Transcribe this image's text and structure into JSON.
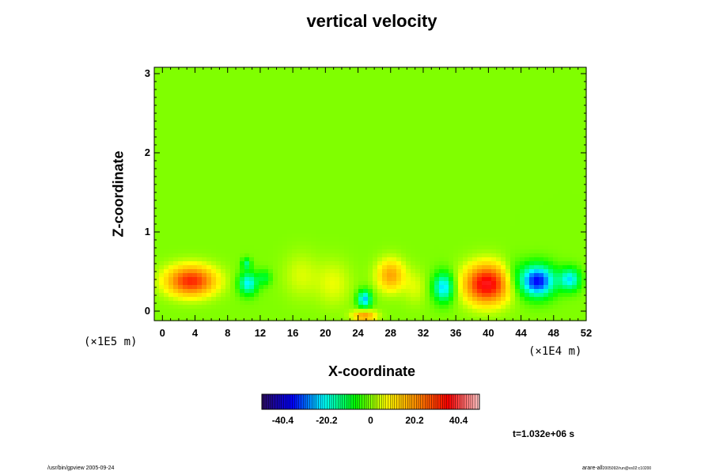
{
  "chart_data": {
    "type": "heatmap",
    "title": "vertical velocity",
    "xlabel": "X-coordinate",
    "ylabel": "Z-coordinate",
    "x_scale_label": "(×1E4 m)",
    "y_scale_label": "(×1E5 m)",
    "xlim": [
      -1,
      52
    ],
    "ylim": [
      -0.12,
      3.08
    ],
    "x_ticks": [
      "0",
      "4",
      "8",
      "12",
      "16",
      "20",
      "24",
      "28",
      "32",
      "36",
      "40",
      "44",
      "48",
      "52"
    ],
    "y_ticks": [
      "0",
      "1",
      "2",
      "3"
    ],
    "colorbar": {
      "min": -50,
      "max": 50,
      "tick_values": [
        -40.4,
        -20.2,
        0,
        20.2,
        40.4
      ],
      "tick_labels": [
        "-40.4",
        "-20.2",
        "0",
        "20.2",
        "40.4"
      ],
      "colors": [
        "#2a0a5e",
        "#0000ff",
        "#00ffff",
        "#00ff00",
        "#ffff00",
        "#ff8800",
        "#ff0000",
        "#ffc8c8"
      ]
    },
    "background_value": 0,
    "features": [
      {
        "x": 3.5,
        "z": 0.38,
        "sx": 2.1,
        "sz": 0.13,
        "value": 32
      },
      {
        "x": 10.5,
        "z": 0.35,
        "sx": 0.8,
        "sz": 0.1,
        "value": -22
      },
      {
        "x": 10.3,
        "z": 0.6,
        "sx": 0.4,
        "sz": 0.05,
        "value": -14
      },
      {
        "x": 12.5,
        "z": 0.42,
        "sx": 0.6,
        "sz": 0.07,
        "value": -10
      },
      {
        "x": 24.8,
        "z": 0.15,
        "sx": 0.6,
        "sz": 0.08,
        "value": -25
      },
      {
        "x": 24.8,
        "z": -0.06,
        "sx": 1.0,
        "sz": 0.05,
        "value": 20
      },
      {
        "x": 28.0,
        "z": 0.45,
        "sx": 1.2,
        "sz": 0.14,
        "value": 18
      },
      {
        "x": 34.5,
        "z": 0.3,
        "sx": 0.9,
        "sz": 0.13,
        "value": -24
      },
      {
        "x": 39.8,
        "z": 0.34,
        "sx": 1.9,
        "sz": 0.17,
        "value": 38
      },
      {
        "x": 46.0,
        "z": 0.38,
        "sx": 1.5,
        "sz": 0.14,
        "value": -36
      },
      {
        "x": 50.0,
        "z": 0.4,
        "sx": 0.9,
        "sz": 0.1,
        "value": -22
      },
      {
        "x": 17.0,
        "z": 0.45,
        "sx": 1.5,
        "sz": 0.2,
        "value": 5
      },
      {
        "x": 21.0,
        "z": 0.35,
        "sx": 1.5,
        "sz": 0.2,
        "value": 6
      },
      {
        "x": 31.0,
        "z": 0.3,
        "sx": 1.0,
        "sz": 0.15,
        "value": 5
      },
      {
        "x": 43.0,
        "z": 0.45,
        "sx": 1.0,
        "sz": 0.15,
        "value": -5
      }
    ],
    "time_label": "t=1.032e+06 s"
  },
  "footer": {
    "left": "/usr/bin/gpview 2005-09-24",
    "right_main": "arare-all",
    "right_sub": "2005092/run@vs02:c10200"
  }
}
